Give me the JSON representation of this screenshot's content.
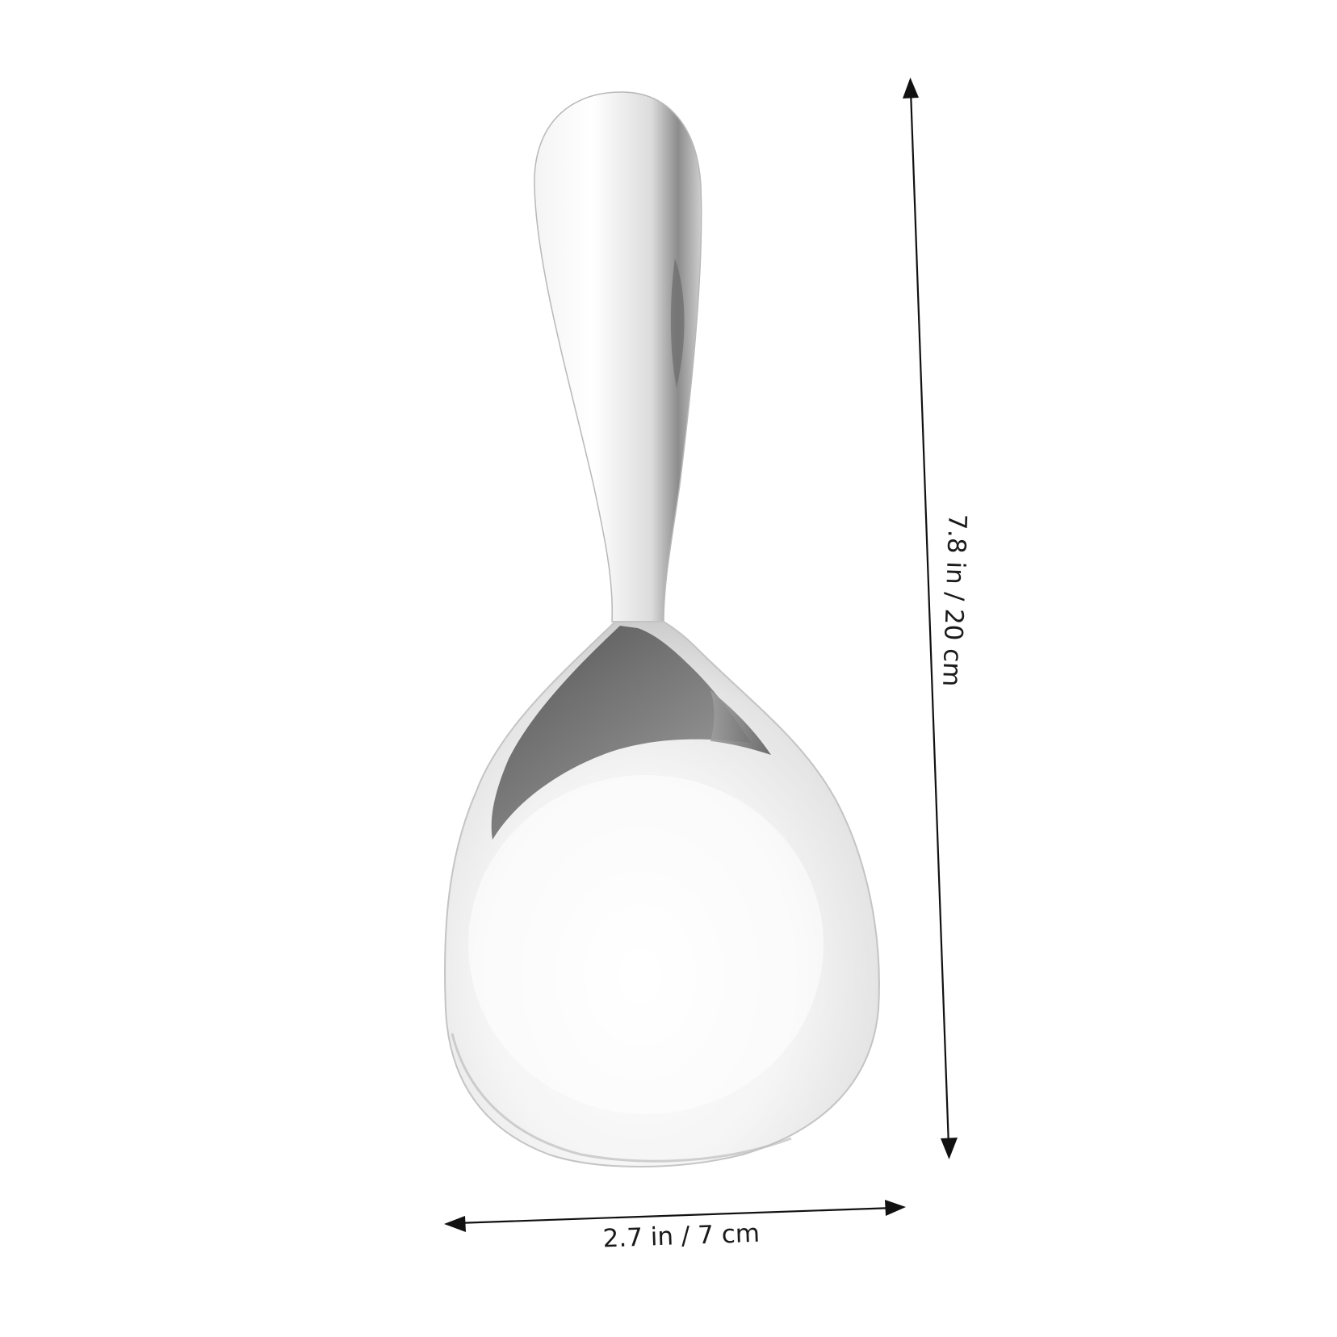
{
  "product": {
    "icon": "serving-spoon-icon",
    "colors": {
      "metal_light": "#f3f3f3",
      "metal_mid": "#d6d6d6",
      "metal_dark": "#7a7a7a",
      "metal_shadow": "#4a4a4a",
      "dimension_line": "#111111"
    }
  },
  "dimensions": {
    "height_label": "7.8 in / 20 cm",
    "width_label": "2.7 in / 7 cm"
  }
}
